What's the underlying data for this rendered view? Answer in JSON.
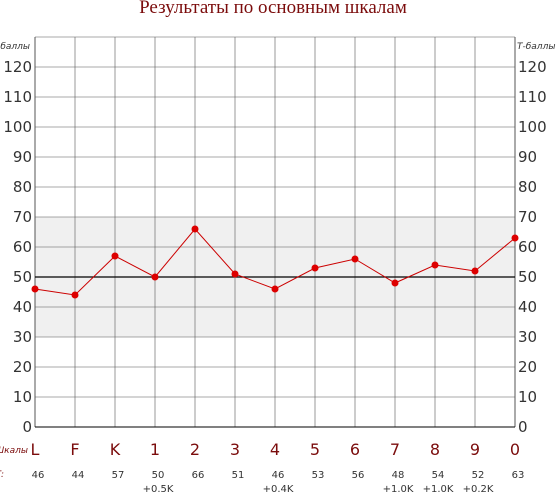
{
  "chart_data": {
    "type": "line",
    "title": "Результаты по основным шкалам",
    "ylabel": "Т-баллы",
    "categories_caption": "Шкалы",
    "values_caption": "Т:",
    "categories": [
      "L",
      "F",
      "K",
      "1",
      "2",
      "3",
      "4",
      "5",
      "6",
      "7",
      "8",
      "9",
      "0"
    ],
    "values": [
      46,
      44,
      57,
      50,
      66,
      51,
      46,
      53,
      56,
      48,
      54,
      52,
      63
    ],
    "value_labels": [
      "46",
      "44",
      "57",
      "50",
      "66",
      "51",
      "46",
      "53",
      "56",
      "48",
      "54",
      "52",
      "63"
    ],
    "corrections": [
      "",
      "",
      "",
      "+0.5K",
      "",
      "",
      "+0.4K",
      "",
      "",
      "+1.0K",
      "+1.0K",
      "+0.2K",
      ""
    ],
    "ylim": [
      0,
      130
    ],
    "yticks": [
      0,
      10,
      20,
      30,
      40,
      50,
      60,
      70,
      80,
      90,
      100,
      110,
      120
    ],
    "reference_line": 50,
    "normal_band": [
      30,
      70
    ],
    "grid": true,
    "colors": {
      "line": "#cc0000",
      "point": "#dd0000",
      "band": "#f0f0f0",
      "grid": "#555555",
      "accent_text": "#7b0c0c"
    }
  }
}
